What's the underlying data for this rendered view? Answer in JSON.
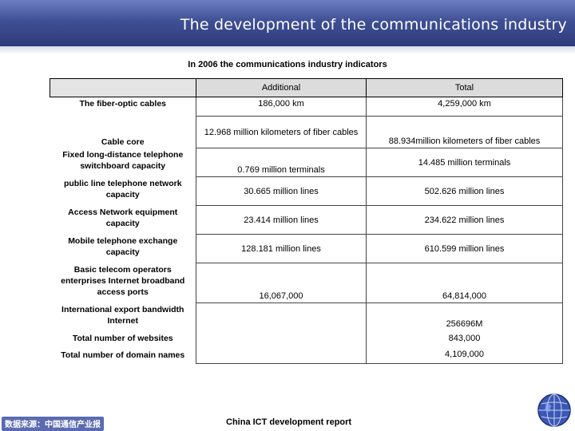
{
  "header": {
    "title": "The development of the communications industry"
  },
  "subtitle": "In 2006 the communications industry indicators",
  "table": {
    "columns": [
      "",
      "Additional",
      "Total"
    ],
    "rows": [
      {
        "label": "The fiber-optic cables",
        "additional": "186,000 km",
        "total": "4,259,000 km"
      },
      {
        "label": "Cable core",
        "additional": "12.968 million kilometers of fiber cables",
        "total": "88.934million kilometers of fiber cables"
      },
      {
        "label": "Fixed long-distance telephone switchboard capacity",
        "additional": "0.769 million terminals",
        "total": "14.485 million   terminals"
      },
      {
        "label": "public line telephone network capacity",
        "additional": "30.665 million   lines",
        "total": "502.626 million   lines"
      },
      {
        "label": "Access Network equipment capacity",
        "additional": "23.414 million   lines",
        "total": "234.622 million   lines"
      },
      {
        "label": "Mobile telephone exchange capacity",
        "additional": "128.181 million   lines",
        "total": "610.599 million   lines"
      },
      {
        "label": "Basic telecom operators enterprises Internet broadband access ports",
        "additional": "16,067,000",
        "total": "64,814,000"
      },
      {
        "label": "International export bandwidth Internet",
        "additional": "",
        "total": "256696M"
      },
      {
        "label": "Total number of websites",
        "additional": "",
        "total": "843,000"
      },
      {
        "label": "Total number of domain names",
        "additional": "",
        "total": "4,109,000"
      }
    ]
  },
  "footer": {
    "left": "数据来源：中国通信产业报",
    "center": "China ICT development report"
  },
  "colors": {
    "header": "#3f4f95",
    "header_text": "#ffffff",
    "table_header_bg": "#dcdcdc"
  },
  "icons": {
    "logo": "globe-icon"
  }
}
